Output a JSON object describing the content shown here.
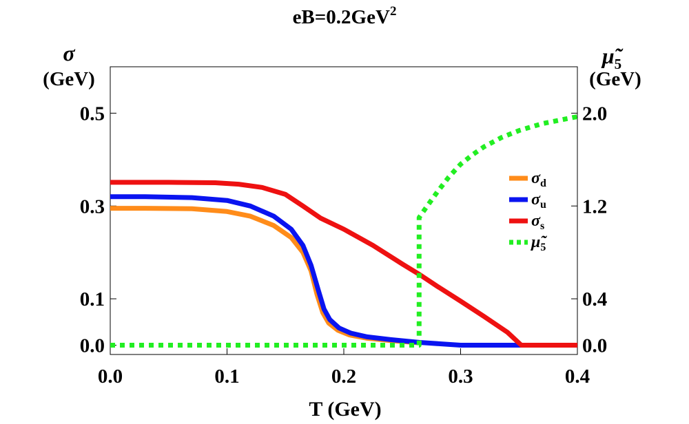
{
  "chart_data": {
    "type": "line",
    "title": "eB=0.2GeV",
    "title_sup": "2",
    "xlabel": "T (GeV)",
    "ylabel_left_symbol": "σ",
    "ylabel_left_unit": "(GeV)",
    "ylabel_right_symbol": "μ̃",
    "ylabel_right_sub": "5",
    "ylabel_right_unit": "(GeV)",
    "xlim": [
      0.0,
      0.4
    ],
    "ylim_left": [
      -0.02,
      0.6
    ],
    "ylim_right": [
      -0.08,
      2.4
    ],
    "x_ticks": [
      "0.0",
      "0.1",
      "0.2",
      "0.3",
      "0.4"
    ],
    "y_left_ticks": [
      "0.0",
      "0.1",
      "0.3",
      "0.5"
    ],
    "y_right_ticks": [
      "0.0",
      "0.4",
      "1.2",
      "2.0"
    ],
    "grid": false,
    "legend_position": "right",
    "series": [
      {
        "name": "σ",
        "name_sub": "d",
        "axis": "left",
        "color": "#ff8c1a",
        "style": "solid",
        "points": [
          [
            0.0,
            0.295
          ],
          [
            0.03,
            0.295
          ],
          [
            0.07,
            0.294
          ],
          [
            0.1,
            0.288
          ],
          [
            0.12,
            0.278
          ],
          [
            0.14,
            0.258
          ],
          [
            0.155,
            0.232
          ],
          [
            0.165,
            0.2
          ],
          [
            0.172,
            0.16
          ],
          [
            0.177,
            0.11
          ],
          [
            0.182,
            0.07
          ],
          [
            0.187,
            0.048
          ],
          [
            0.195,
            0.032
          ],
          [
            0.205,
            0.022
          ],
          [
            0.22,
            0.015
          ],
          [
            0.24,
            0.01
          ],
          [
            0.265,
            0.005
          ]
        ]
      },
      {
        "name": "σ",
        "name_sub": "u",
        "axis": "left",
        "color": "#0a14f0",
        "style": "solid",
        "points": [
          [
            0.0,
            0.32
          ],
          [
            0.03,
            0.32
          ],
          [
            0.07,
            0.318
          ],
          [
            0.1,
            0.312
          ],
          [
            0.12,
            0.3
          ],
          [
            0.14,
            0.278
          ],
          [
            0.155,
            0.25
          ],
          [
            0.165,
            0.215
          ],
          [
            0.172,
            0.172
          ],
          [
            0.178,
            0.12
          ],
          [
            0.183,
            0.078
          ],
          [
            0.188,
            0.055
          ],
          [
            0.196,
            0.037
          ],
          [
            0.206,
            0.026
          ],
          [
            0.22,
            0.018
          ],
          [
            0.24,
            0.012
          ],
          [
            0.265,
            0.006
          ],
          [
            0.3,
            0.0
          ],
          [
            0.4,
            0.0
          ]
        ]
      },
      {
        "name": "σ",
        "name_sub": "s",
        "axis": "left",
        "color": "#ee1111",
        "style": "solid",
        "points": [
          [
            0.0,
            0.351
          ],
          [
            0.05,
            0.351
          ],
          [
            0.09,
            0.35
          ],
          [
            0.11,
            0.347
          ],
          [
            0.13,
            0.34
          ],
          [
            0.15,
            0.325
          ],
          [
            0.165,
            0.3
          ],
          [
            0.18,
            0.274
          ],
          [
            0.2,
            0.25
          ],
          [
            0.225,
            0.215
          ],
          [
            0.25,
            0.175
          ],
          [
            0.265,
            0.152
          ],
          [
            0.28,
            0.127
          ],
          [
            0.3,
            0.095
          ],
          [
            0.32,
            0.062
          ],
          [
            0.34,
            0.028
          ],
          [
            0.352,
            0.0
          ],
          [
            0.4,
            0.0
          ]
        ]
      },
      {
        "name": "μ̃",
        "name_sub": "5",
        "axis": "right",
        "color": "#22ee22",
        "style": "dotted",
        "points": [
          [
            0.0,
            0.0
          ],
          [
            0.2645,
            0.0
          ],
          [
            0.2645,
            1.1
          ],
          [
            0.27,
            1.18
          ],
          [
            0.28,
            1.32
          ],
          [
            0.29,
            1.45
          ],
          [
            0.3,
            1.56
          ],
          [
            0.31,
            1.64
          ],
          [
            0.32,
            1.71
          ],
          [
            0.335,
            1.79
          ],
          [
            0.35,
            1.85
          ],
          [
            0.37,
            1.91
          ],
          [
            0.39,
            1.95
          ],
          [
            0.4,
            1.97
          ]
        ]
      }
    ]
  }
}
